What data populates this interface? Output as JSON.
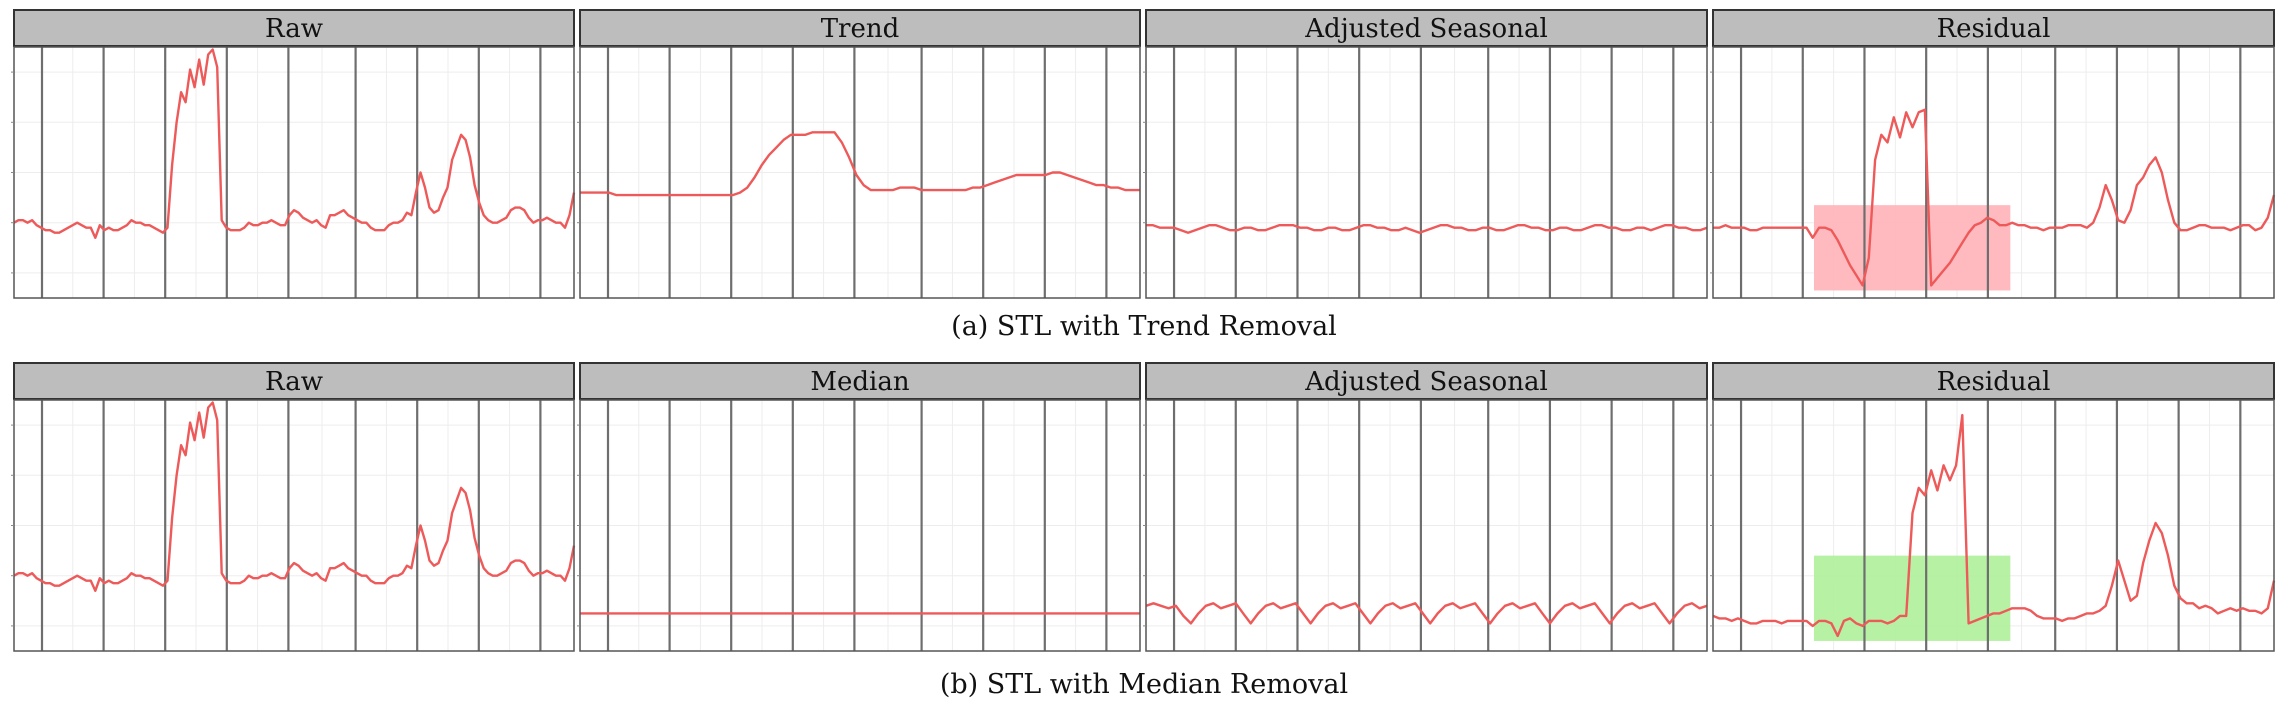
{
  "colors": {
    "series": "#ee5a5a",
    "strip_fill": "#bdbdbd",
    "strip_stroke": "#333333",
    "vline": "#6e6e6e",
    "grid": "#ededed",
    "panel_border": "#555555",
    "highlight_a": "#ffb3b8",
    "highlight_b": "#aef09a"
  },
  "chart_data": [
    {
      "type": "line",
      "caption": "(a) STL with Trend Removal",
      "panels": [
        {
          "title": "Raw",
          "ylim": [
            0,
            1
          ],
          "highlight": null,
          "values": [
            0.3,
            0.31,
            0.31,
            0.3,
            0.31,
            0.29,
            0.28,
            0.27,
            0.27,
            0.26,
            0.26,
            0.27,
            0.28,
            0.29,
            0.3,
            0.29,
            0.28,
            0.28,
            0.24,
            0.29,
            0.27,
            0.28,
            0.27,
            0.27,
            0.28,
            0.29,
            0.31,
            0.3,
            0.3,
            0.29,
            0.29,
            0.28,
            0.27,
            0.26,
            0.28,
            0.53,
            0.7,
            0.82,
            0.78,
            0.91,
            0.84,
            0.95,
            0.85,
            0.97,
            0.99,
            0.92,
            0.31,
            0.28,
            0.27,
            0.27,
            0.27,
            0.28,
            0.3,
            0.29,
            0.29,
            0.3,
            0.3,
            0.31,
            0.3,
            0.29,
            0.29,
            0.33,
            0.35,
            0.34,
            0.32,
            0.31,
            0.3,
            0.31,
            0.29,
            0.28,
            0.33,
            0.33,
            0.34,
            0.35,
            0.33,
            0.32,
            0.31,
            0.3,
            0.3,
            0.28,
            0.27,
            0.27,
            0.27,
            0.29,
            0.3,
            0.3,
            0.31,
            0.34,
            0.33,
            0.42,
            0.5,
            0.44,
            0.36,
            0.34,
            0.35,
            0.4,
            0.44,
            0.55,
            0.6,
            0.65,
            0.63,
            0.56,
            0.45,
            0.38,
            0.33,
            0.31,
            0.3,
            0.3,
            0.31,
            0.32,
            0.35,
            0.36,
            0.36,
            0.35,
            0.32,
            0.3,
            0.31,
            0.31,
            0.32,
            0.31,
            0.3,
            0.3,
            0.28,
            0.33,
            0.42
          ]
        },
        {
          "title": "Trend",
          "ylim": [
            0,
            1
          ],
          "highlight": null,
          "values": [
            0.42,
            0.42,
            0.42,
            0.42,
            0.42,
            0.41,
            0.41,
            0.41,
            0.41,
            0.41,
            0.41,
            0.41,
            0.41,
            0.41,
            0.41,
            0.41,
            0.41,
            0.41,
            0.41,
            0.41,
            0.41,
            0.41,
            0.42,
            0.44,
            0.48,
            0.53,
            0.57,
            0.6,
            0.63,
            0.65,
            0.65,
            0.65,
            0.66,
            0.66,
            0.66,
            0.66,
            0.62,
            0.56,
            0.49,
            0.45,
            0.43,
            0.43,
            0.43,
            0.43,
            0.44,
            0.44,
            0.44,
            0.43,
            0.43,
            0.43,
            0.43,
            0.43,
            0.43,
            0.43,
            0.44,
            0.44,
            0.45,
            0.46,
            0.47,
            0.48,
            0.49,
            0.49,
            0.49,
            0.49,
            0.49,
            0.5,
            0.5,
            0.49,
            0.48,
            0.47,
            0.46,
            0.45,
            0.45,
            0.44,
            0.44,
            0.43,
            0.43,
            0.43
          ]
        },
        {
          "title": "Adjusted Seasonal",
          "ylim": [
            0,
            1
          ],
          "highlight": null,
          "values": [
            0.29,
            0.29,
            0.28,
            0.28,
            0.28,
            0.27,
            0.26,
            0.27,
            0.28,
            0.29,
            0.29,
            0.28,
            0.27,
            0.27,
            0.28,
            0.28,
            0.27,
            0.27,
            0.28,
            0.29,
            0.29,
            0.29,
            0.28,
            0.28,
            0.27,
            0.27,
            0.28,
            0.28,
            0.27,
            0.27,
            0.28,
            0.29,
            0.29,
            0.28,
            0.28,
            0.27,
            0.27,
            0.28,
            0.27,
            0.26,
            0.27,
            0.28,
            0.29,
            0.29,
            0.28,
            0.28,
            0.27,
            0.27,
            0.28,
            0.28,
            0.27,
            0.27,
            0.28,
            0.29,
            0.29,
            0.28,
            0.28,
            0.27,
            0.27,
            0.28,
            0.28,
            0.27,
            0.27,
            0.28,
            0.29,
            0.29,
            0.28,
            0.28,
            0.27,
            0.27,
            0.28,
            0.28,
            0.27,
            0.28,
            0.29,
            0.29,
            0.28,
            0.28,
            0.27,
            0.27,
            0.28
          ]
        },
        {
          "title": "Residual",
          "ylim": [
            0,
            1
          ],
          "highlight": {
            "x_range": [
              0.18,
              0.53
            ],
            "y_range": [
              0.03,
              0.37
            ],
            "color_key": "highlight_a"
          },
          "values": [
            0.28,
            0.28,
            0.29,
            0.28,
            0.28,
            0.28,
            0.27,
            0.27,
            0.28,
            0.28,
            0.28,
            0.28,
            0.28,
            0.28,
            0.28,
            0.28,
            0.24,
            0.28,
            0.28,
            0.27,
            0.23,
            0.18,
            0.13,
            0.09,
            0.05,
            0.16,
            0.55,
            0.65,
            0.62,
            0.72,
            0.64,
            0.74,
            0.68,
            0.74,
            0.75,
            0.05,
            0.08,
            0.11,
            0.14,
            0.18,
            0.22,
            0.26,
            0.29,
            0.3,
            0.32,
            0.31,
            0.29,
            0.29,
            0.3,
            0.29,
            0.29,
            0.28,
            0.28,
            0.27,
            0.28,
            0.28,
            0.28,
            0.29,
            0.29,
            0.29,
            0.28,
            0.3,
            0.36,
            0.45,
            0.39,
            0.31,
            0.3,
            0.35,
            0.45,
            0.48,
            0.53,
            0.56,
            0.5,
            0.39,
            0.3,
            0.27,
            0.27,
            0.28,
            0.29,
            0.29,
            0.28,
            0.28,
            0.28,
            0.27,
            0.28,
            0.29,
            0.29,
            0.27,
            0.28,
            0.32,
            0.41
          ]
        }
      ]
    },
    {
      "type": "line",
      "caption": "(b) STL with Median Removal",
      "panels": [
        {
          "title": "Raw",
          "ylim": [
            0,
            1
          ],
          "highlight": null,
          "values": [
            0.3,
            0.31,
            0.31,
            0.3,
            0.31,
            0.29,
            0.28,
            0.27,
            0.27,
            0.26,
            0.26,
            0.27,
            0.28,
            0.29,
            0.3,
            0.29,
            0.28,
            0.28,
            0.24,
            0.29,
            0.27,
            0.28,
            0.27,
            0.27,
            0.28,
            0.29,
            0.31,
            0.3,
            0.3,
            0.29,
            0.29,
            0.28,
            0.27,
            0.26,
            0.28,
            0.53,
            0.7,
            0.82,
            0.78,
            0.91,
            0.84,
            0.95,
            0.85,
            0.97,
            0.99,
            0.92,
            0.31,
            0.28,
            0.27,
            0.27,
            0.27,
            0.28,
            0.3,
            0.29,
            0.29,
            0.3,
            0.3,
            0.31,
            0.3,
            0.29,
            0.29,
            0.33,
            0.35,
            0.34,
            0.32,
            0.31,
            0.3,
            0.31,
            0.29,
            0.28,
            0.33,
            0.33,
            0.34,
            0.35,
            0.33,
            0.32,
            0.31,
            0.3,
            0.3,
            0.28,
            0.27,
            0.27,
            0.27,
            0.29,
            0.3,
            0.3,
            0.31,
            0.34,
            0.33,
            0.42,
            0.5,
            0.44,
            0.36,
            0.34,
            0.35,
            0.4,
            0.44,
            0.55,
            0.6,
            0.65,
            0.63,
            0.56,
            0.45,
            0.38,
            0.33,
            0.31,
            0.3,
            0.3,
            0.31,
            0.32,
            0.35,
            0.36,
            0.36,
            0.35,
            0.32,
            0.3,
            0.31,
            0.31,
            0.32,
            0.31,
            0.3,
            0.3,
            0.28,
            0.33,
            0.42
          ]
        },
        {
          "title": "Median",
          "ylim": [
            0,
            1
          ],
          "highlight": null,
          "values": [
            0.15,
            0.15,
            0.15,
            0.15,
            0.15,
            0.15,
            0.15,
            0.15,
            0.15,
            0.15,
            0.15,
            0.15,
            0.15,
            0.15,
            0.15,
            0.15,
            0.15,
            0.15,
            0.15,
            0.15
          ]
        },
        {
          "title": "Adjusted Seasonal",
          "ylim": [
            0,
            1
          ],
          "highlight": null,
          "values": [
            0.18,
            0.19,
            0.18,
            0.17,
            0.18,
            0.14,
            0.11,
            0.15,
            0.18,
            0.19,
            0.17,
            0.18,
            0.19,
            0.15,
            0.11,
            0.15,
            0.18,
            0.19,
            0.17,
            0.18,
            0.19,
            0.15,
            0.11,
            0.15,
            0.18,
            0.19,
            0.17,
            0.18,
            0.19,
            0.15,
            0.11,
            0.15,
            0.18,
            0.19,
            0.17,
            0.18,
            0.19,
            0.15,
            0.11,
            0.15,
            0.18,
            0.19,
            0.17,
            0.18,
            0.19,
            0.15,
            0.11,
            0.15,
            0.18,
            0.19,
            0.17,
            0.18,
            0.19,
            0.15,
            0.11,
            0.15,
            0.18,
            0.19,
            0.17,
            0.18,
            0.19,
            0.15,
            0.11,
            0.15,
            0.18,
            0.19,
            0.17,
            0.18,
            0.19,
            0.15,
            0.11,
            0.15,
            0.18,
            0.19,
            0.17,
            0.18
          ]
        },
        {
          "title": "Residual",
          "ylim": [
            0,
            1
          ],
          "highlight": {
            "x_range": [
              0.18,
              0.53
            ],
            "y_range": [
              0.04,
              0.38
            ],
            "color_key": "highlight_b"
          },
          "values": [
            0.14,
            0.13,
            0.13,
            0.12,
            0.13,
            0.12,
            0.11,
            0.11,
            0.12,
            0.12,
            0.12,
            0.11,
            0.12,
            0.12,
            0.12,
            0.12,
            0.1,
            0.12,
            0.12,
            0.11,
            0.06,
            0.12,
            0.13,
            0.11,
            0.1,
            0.12,
            0.12,
            0.12,
            0.11,
            0.12,
            0.14,
            0.14,
            0.55,
            0.65,
            0.62,
            0.72,
            0.64,
            0.74,
            0.68,
            0.74,
            0.94,
            0.11,
            0.12,
            0.13,
            0.14,
            0.15,
            0.15,
            0.16,
            0.17,
            0.17,
            0.17,
            0.16,
            0.14,
            0.13,
            0.13,
            0.13,
            0.12,
            0.13,
            0.13,
            0.14,
            0.15,
            0.15,
            0.16,
            0.18,
            0.26,
            0.36,
            0.28,
            0.2,
            0.22,
            0.35,
            0.44,
            0.51,
            0.47,
            0.38,
            0.26,
            0.21,
            0.19,
            0.19,
            0.17,
            0.18,
            0.17,
            0.15,
            0.16,
            0.17,
            0.16,
            0.17,
            0.16,
            0.16,
            0.15,
            0.17,
            0.28
          ]
        }
      ]
    }
  ]
}
